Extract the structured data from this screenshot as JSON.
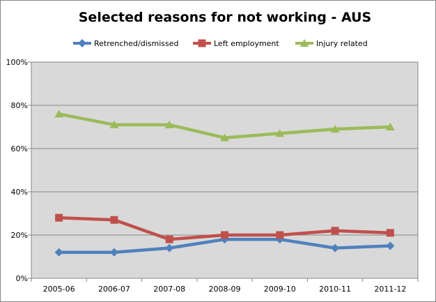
{
  "chart_data": {
    "type": "line",
    "title": "Selected reasons for not working - AUS",
    "xlabel": "",
    "ylabel": "",
    "categories": [
      "2005-06",
      "2006-07",
      "2007-08",
      "2008-09",
      "2009-10",
      "2010-11",
      "2011-12"
    ],
    "ylim": [
      0,
      100
    ],
    "y_ticks": [
      0,
      20,
      40,
      60,
      80,
      100
    ],
    "y_tick_labels": [
      "0%",
      "20%",
      "40%",
      "60%",
      "80%",
      "100%"
    ],
    "grid": true,
    "legend_position": "top",
    "plot_background": "#d9d9d9",
    "series": [
      {
        "name": "Retrenched/dismissed",
        "color": "#4f81bd",
        "marker": "diamond",
        "values": [
          12,
          12,
          14,
          18,
          18,
          14,
          15
        ]
      },
      {
        "name": "Left employment",
        "color": "#c0504d",
        "marker": "square",
        "values": [
          28,
          27,
          18,
          20,
          20,
          22,
          21
        ]
      },
      {
        "name": "Injury related",
        "color": "#9bbb59",
        "marker": "triangle",
        "values": [
          76,
          71,
          71,
          65,
          67,
          69,
          70
        ]
      }
    ]
  }
}
